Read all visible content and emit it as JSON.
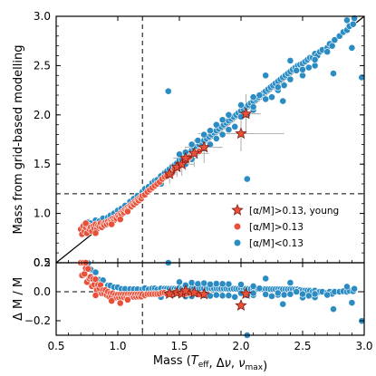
{
  "chart_data": [
    {
      "type": "scatter",
      "panel": "top",
      "xlabel": "",
      "ylabel": "Mass from grid-based modelling",
      "xlim": [
        0.5,
        3.0
      ],
      "ylim": [
        0.5,
        3.0
      ],
      "xticks": [
        "0.5",
        "1.0",
        "1.5",
        "2.0",
        "2.5",
        "3.0"
      ],
      "yticks": [
        "0.5",
        "1.0",
        "1.5",
        "2.0",
        "2.5",
        "3.0"
      ],
      "show_xticklabels": false,
      "legend_position": "lower-right",
      "one_to_one_line": true,
      "reference_lines": {
        "vertical_x": 1.2,
        "horizontal_y": 1.2,
        "style": "dashed"
      },
      "colors": {
        "blue": "#2b8cc4",
        "red": "#e8503a",
        "edge": "#ffffff",
        "star_edge": "#7a1f14"
      },
      "series": [
        {
          "name": "[α/M]>0.13, young",
          "marker": "star",
          "color": "#e8503a",
          "points": [
            [
              1.42,
              1.4
            ],
            [
              1.48,
              1.47
            ],
            [
              1.52,
              1.5
            ],
            [
              1.55,
              1.56
            ],
            [
              1.62,
              1.61
            ],
            [
              1.7,
              1.67
            ],
            [
              2.0,
              1.81
            ],
            [
              2.04,
              2.01
            ]
          ],
          "errors": [
            [
              0.06,
              0.1
            ],
            [
              0.08,
              0.1
            ],
            [
              0.1,
              0.12
            ],
            [
              0.1,
              0.12
            ],
            [
              0.12,
              0.14
            ],
            [
              0.15,
              0.16
            ],
            [
              0.35,
              0.18
            ],
            [
              0.12,
              0.2
            ]
          ]
        },
        {
          "name": "[α/M]>0.13",
          "marker": "circle",
          "color": "#e8503a",
          "points": [
            [
              0.7,
              0.84
            ],
            [
              0.71,
              0.79
            ],
            [
              0.72,
              0.87
            ],
            [
              0.73,
              0.82
            ],
            [
              0.74,
              0.86
            ],
            [
              0.75,
              0.8
            ],
            [
              0.76,
              0.88
            ],
            [
              0.77,
              0.84
            ],
            [
              0.78,
              0.86
            ],
            [
              0.79,
              0.82
            ],
            [
              0.8,
              0.87
            ],
            [
              0.81,
              0.85
            ],
            [
              0.82,
              0.89
            ],
            [
              0.83,
              0.84
            ],
            [
              0.84,
              0.88
            ],
            [
              0.85,
              0.87
            ],
            [
              0.86,
              0.9
            ],
            [
              0.87,
              0.86
            ],
            [
              0.88,
              0.89
            ],
            [
              0.89,
              0.88
            ],
            [
              0.9,
              0.91
            ],
            [
              0.91,
              0.89
            ],
            [
              0.92,
              0.92
            ],
            [
              0.93,
              0.9
            ],
            [
              0.94,
              0.93
            ],
            [
              0.95,
              0.92
            ],
            [
              0.96,
              0.95
            ],
            [
              0.97,
              0.93
            ],
            [
              0.98,
              0.96
            ],
            [
              0.99,
              0.95
            ],
            [
              1.0,
              0.98
            ],
            [
              1.01,
              0.97
            ],
            [
              1.02,
              1.0
            ],
            [
              1.03,
              0.99
            ],
            [
              1.04,
              1.02
            ],
            [
              1.05,
              1.01
            ],
            [
              1.06,
              1.04
            ],
            [
              1.07,
              1.03
            ],
            [
              1.08,
              1.06
            ],
            [
              1.09,
              1.05
            ],
            [
              1.1,
              1.08
            ],
            [
              1.11,
              1.07
            ],
            [
              1.12,
              1.1
            ],
            [
              1.13,
              1.09
            ],
            [
              1.14,
              1.12
            ],
            [
              1.15,
              1.11
            ],
            [
              1.16,
              1.14
            ],
            [
              1.17,
              1.13
            ],
            [
              1.18,
              1.16
            ],
            [
              1.19,
              1.15
            ],
            [
              1.2,
              1.18
            ],
            [
              1.22,
              1.19
            ],
            [
              1.24,
              1.22
            ],
            [
              1.26,
              1.24
            ],
            [
              1.28,
              1.26
            ],
            [
              1.3,
              1.28
            ],
            [
              1.32,
              1.3
            ],
            [
              1.34,
              1.32
            ],
            [
              1.36,
              1.35
            ],
            [
              1.38,
              1.37
            ],
            [
              1.4,
              1.38
            ],
            [
              1.44,
              1.41
            ],
            [
              1.46,
              1.45
            ],
            [
              1.5,
              1.48
            ],
            [
              1.56,
              1.54
            ],
            [
              1.58,
              1.57
            ],
            [
              1.66,
              1.63
            ],
            [
              0.74,
              0.9
            ],
            [
              0.82,
              0.8
            ],
            [
              0.95,
              0.89
            ],
            [
              1.02,
              0.94
            ],
            [
              1.08,
              1.02
            ]
          ]
        },
        {
          "name": "[α/M]<0.13",
          "marker": "circle",
          "color": "#2b8cc4",
          "points": [
            [
              0.72,
              0.88
            ],
            [
              0.76,
              0.91
            ],
            [
              0.78,
              0.9
            ],
            [
              0.82,
              0.93
            ],
            [
              0.85,
              0.92
            ],
            [
              0.88,
              0.95
            ],
            [
              0.92,
              0.96
            ],
            [
              0.94,
              0.98
            ],
            [
              0.97,
              1.0
            ],
            [
              1.0,
              1.03
            ],
            [
              1.03,
              1.05
            ],
            [
              1.06,
              1.08
            ],
            [
              1.1,
              1.12
            ],
            [
              1.13,
              1.15
            ],
            [
              1.16,
              1.18
            ],
            [
              1.2,
              1.22
            ],
            [
              1.22,
              1.25
            ],
            [
              1.25,
              1.27
            ],
            [
              1.28,
              1.31
            ],
            [
              1.3,
              1.33
            ],
            [
              1.32,
              1.34
            ],
            [
              1.35,
              1.38
            ],
            [
              1.38,
              1.41
            ],
            [
              1.4,
              1.43
            ],
            [
              1.42,
              1.45
            ],
            [
              1.44,
              1.47
            ],
            [
              1.46,
              1.49
            ],
            [
              1.48,
              1.51
            ],
            [
              1.5,
              1.54
            ],
            [
              1.52,
              1.55
            ],
            [
              1.54,
              1.57
            ],
            [
              1.56,
              1.6
            ],
            [
              1.58,
              1.62
            ],
            [
              1.6,
              1.64
            ],
            [
              1.62,
              1.66
            ],
            [
              1.64,
              1.68
            ],
            [
              1.66,
              1.7
            ],
            [
              1.68,
              1.72
            ],
            [
              1.7,
              1.74
            ],
            [
              1.72,
              1.76
            ],
            [
              1.74,
              1.78
            ],
            [
              1.76,
              1.8
            ],
            [
              1.78,
              1.82
            ],
            [
              1.8,
              1.84
            ],
            [
              1.82,
              1.86
            ],
            [
              1.84,
              1.88
            ],
            [
              1.86,
              1.9
            ],
            [
              1.88,
              1.92
            ],
            [
              1.9,
              1.94
            ],
            [
              1.92,
              1.96
            ],
            [
              1.94,
              1.98
            ],
            [
              1.96,
              2.0
            ],
            [
              1.98,
              2.02
            ],
            [
              2.0,
              2.04
            ],
            [
              2.02,
              2.06
            ],
            [
              2.04,
              2.08
            ],
            [
              2.06,
              2.1
            ],
            [
              2.08,
              2.12
            ],
            [
              2.1,
              2.14
            ],
            [
              2.12,
              2.16
            ],
            [
              2.14,
              2.18
            ],
            [
              2.16,
              2.2
            ],
            [
              2.18,
              2.22
            ],
            [
              2.2,
              2.24
            ],
            [
              2.22,
              2.26
            ],
            [
              2.24,
              2.28
            ],
            [
              2.26,
              2.3
            ],
            [
              2.28,
              2.32
            ],
            [
              2.3,
              2.34
            ],
            [
              2.32,
              2.36
            ],
            [
              2.34,
              2.38
            ],
            [
              2.36,
              2.4
            ],
            [
              2.38,
              2.42
            ],
            [
              2.4,
              2.44
            ],
            [
              2.42,
              2.46
            ],
            [
              2.44,
              2.48
            ],
            [
              2.46,
              2.5
            ],
            [
              2.48,
              2.51
            ],
            [
              2.5,
              2.52
            ],
            [
              2.52,
              2.54
            ],
            [
              2.54,
              2.56
            ],
            [
              2.56,
              2.58
            ],
            [
              2.58,
              2.58
            ],
            [
              2.6,
              2.62
            ],
            [
              2.62,
              2.6
            ],
            [
              2.64,
              2.64
            ],
            [
              2.66,
              2.66
            ],
            [
              2.7,
              2.68
            ],
            [
              2.72,
              2.72
            ],
            [
              2.74,
              2.7
            ],
            [
              2.76,
              2.76
            ],
            [
              2.8,
              2.8
            ],
            [
              2.83,
              2.84
            ],
            [
              2.86,
              2.86
            ],
            [
              2.88,
              2.9
            ],
            [
              2.91,
              2.92
            ],
            [
              2.86,
              2.96
            ],
            [
              2.92,
              2.98
            ],
            [
              2.4,
              2.55
            ],
            [
              2.6,
              2.5
            ],
            [
              2.2,
              2.4
            ],
            [
              2.3,
              2.25
            ],
            [
              2.1,
              2.05
            ],
            [
              2.15,
              2.2
            ],
            [
              2.25,
              2.18
            ],
            [
              2.45,
              2.45
            ],
            [
              2.5,
              2.4
            ],
            [
              2.55,
              2.48
            ],
            [
              2.35,
              2.3
            ],
            [
              2.05,
              2.0
            ],
            [
              1.95,
              1.88
            ],
            [
              1.85,
              1.8
            ],
            [
              1.75,
              1.7
            ],
            [
              1.65,
              1.62
            ],
            [
              1.55,
              1.5
            ],
            [
              1.45,
              1.42
            ],
            [
              1.35,
              1.3
            ],
            [
              1.6,
              1.55
            ],
            [
              1.7,
              1.66
            ],
            [
              1.8,
              1.76
            ],
            [
              1.9,
              1.85
            ],
            [
              2.0,
              1.98
            ],
            [
              2.1,
              2.08
            ],
            [
              2.2,
              2.16
            ],
            [
              2.3,
              2.28
            ],
            [
              2.4,
              2.36
            ],
            [
              2.5,
              2.46
            ],
            [
              2.6,
              2.56
            ],
            [
              2.7,
              2.64
            ],
            [
              1.41,
              2.24
            ],
            [
              2.9,
              2.68
            ],
            [
              2.98,
              2.38
            ],
            [
              2.75,
              2.42
            ],
            [
              2.05,
              1.35
            ],
            [
              2.34,
              2.14
            ],
            [
              1.5,
              1.6
            ],
            [
              1.6,
              1.7
            ],
            [
              1.7,
              1.8
            ],
            [
              1.8,
              1.9
            ],
            [
              1.9,
              2.0
            ],
            [
              2.0,
              2.1
            ],
            [
              2.1,
              2.18
            ],
            [
              1.55,
              1.62
            ],
            [
              1.65,
              1.74
            ],
            [
              1.75,
              1.84
            ],
            [
              1.85,
              1.95
            ]
          ]
        }
      ],
      "error_bar_color": "#9a9a9a"
    },
    {
      "type": "scatter",
      "panel": "bottom",
      "xlabel": "Mass (T_eff, Δν, ν_max)",
      "ylabel": "Δ M / M",
      "xlim": [
        0.5,
        3.0
      ],
      "ylim": [
        -0.3,
        0.2
      ],
      "xticks": [
        "0.5",
        "1.0",
        "1.5",
        "2.0",
        "2.5",
        "3.0"
      ],
      "yticks": [
        "−0.2",
        "0.0",
        "0.2"
      ],
      "reference_lines": {
        "vertical_x": 1.2,
        "horizontal_y": 0.0,
        "style": "dashed"
      }
    }
  ],
  "legend": {
    "items": [
      {
        "label": "[α/M]>0.13, young",
        "marker": "star",
        "color": "#e8503a"
      },
      {
        "label": "[α/M]>0.13",
        "marker": "circle",
        "color": "#e8503a"
      },
      {
        "label": "[α/M]<0.13",
        "marker": "circle",
        "color": "#2b8cc4"
      }
    ]
  }
}
